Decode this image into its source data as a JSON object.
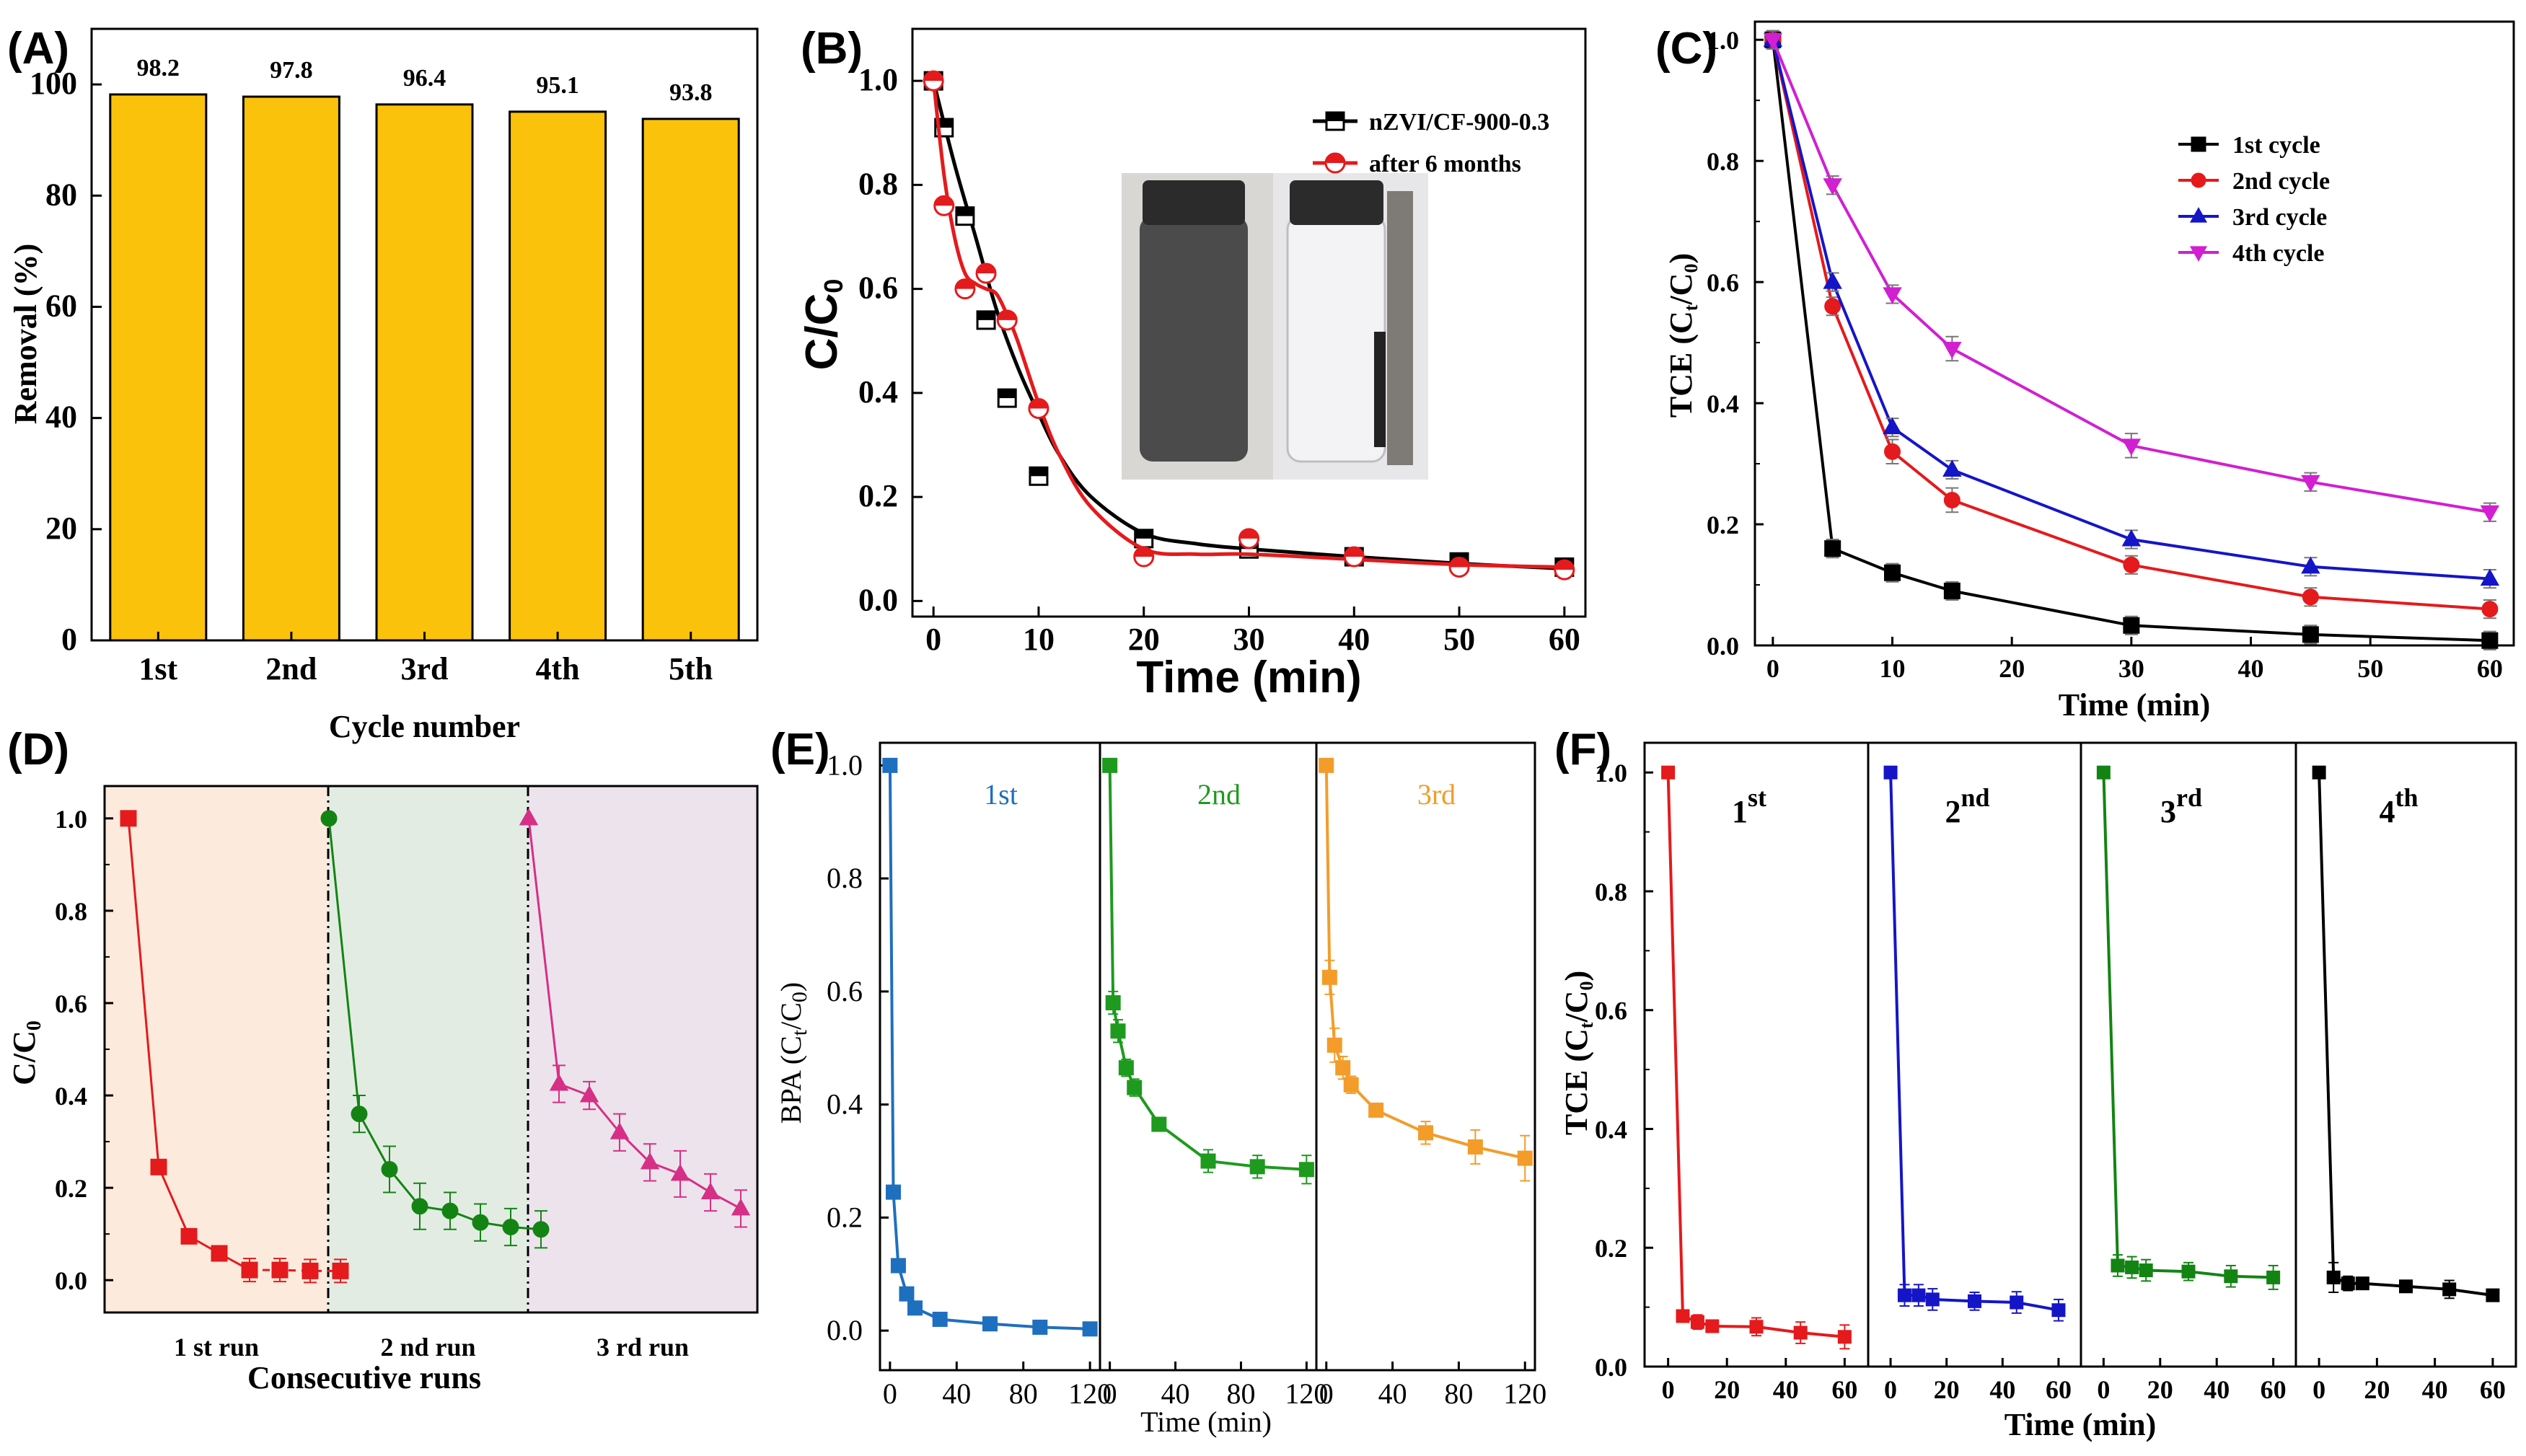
{
  "colors": {
    "bar_fill": "#FBC20B",
    "black": "#000000",
    "red": "#E41A1C",
    "blue": "#1515C8",
    "magenta": "#D11FD1",
    "green": "#138413",
    "pink": "#D62F86",
    "mplblue": "#1F6FBF",
    "mplgreen": "#1E9A1E",
    "mplorange": "#F39C2A",
    "fillD1": "#FCEBDD",
    "fillD2": "#E3ECE3",
    "fillD3": "#EDE3EC"
  },
  "chart_data": [
    {
      "id": "A",
      "panel_label": "(A)",
      "type": "bar",
      "categories": [
        "1st",
        "2nd",
        "3rd",
        "4th",
        "5th"
      ],
      "values": [
        98.2,
        97.8,
        96.4,
        95.1,
        93.8
      ],
      "data_labels": [
        "98.2",
        "97.8",
        "96.4",
        "95.1",
        "93.8"
      ],
      "xlabel": "Cycle number",
      "ylabel": "Removal (%)",
      "ylim": [
        0,
        110
      ],
      "yticks": [
        0,
        20,
        40,
        60,
        80,
        100
      ]
    },
    {
      "id": "B",
      "panel_label": "(B)",
      "type": "line",
      "xlabel": "Time (min)",
      "ylabel": "C/C",
      "ylabel_sub": "0",
      "xlim": [
        -2,
        62
      ],
      "ylim": [
        -0.03,
        1.1
      ],
      "xticks": [
        0,
        10,
        20,
        30,
        40,
        50,
        60
      ],
      "yticks": [
        0.0,
        0.2,
        0.4,
        0.6,
        0.8,
        1.0
      ],
      "inset": "photo of two vials: dark nZVI suspension and clear water with magnet",
      "series": [
        {
          "name": "nZVI/CF-900-0.3",
          "color": "black",
          "marker": "square",
          "x": [
            0,
            1,
            3,
            5,
            7,
            10,
            20,
            30,
            40,
            50,
            60
          ],
          "y": [
            1.0,
            0.91,
            0.74,
            0.54,
            0.39,
            0.24,
            0.12,
            0.1,
            0.085,
            0.075,
            0.065
          ],
          "curve_x": [
            0,
            2,
            4,
            6,
            8,
            10,
            12,
            15,
            20,
            25,
            30,
            40,
            50,
            60
          ],
          "curve_y": [
            1.0,
            0.84,
            0.7,
            0.56,
            0.45,
            0.36,
            0.28,
            0.2,
            0.13,
            0.11,
            0.1,
            0.085,
            0.072,
            0.062
          ]
        },
        {
          "name": "after 6 months",
          "color": "red",
          "marker": "half-circle",
          "x": [
            0,
            1,
            3,
            5,
            7,
            10,
            20,
            30,
            40,
            50,
            60
          ],
          "y": [
            1.0,
            0.76,
            0.6,
            0.63,
            0.54,
            0.37,
            0.085,
            0.12,
            0.085,
            0.065,
            0.06
          ],
          "curve_x": [
            0,
            1,
            2,
            3,
            4,
            5,
            6,
            7,
            8,
            10,
            12,
            15,
            20,
            25,
            30,
            40,
            50,
            60
          ],
          "curve_y": [
            1.0,
            0.82,
            0.7,
            0.63,
            0.61,
            0.6,
            0.59,
            0.55,
            0.5,
            0.38,
            0.28,
            0.18,
            0.1,
            0.09,
            0.09,
            0.08,
            0.07,
            0.065
          ]
        }
      ]
    },
    {
      "id": "C",
      "panel_label": "(C)",
      "type": "line",
      "xlabel": "Time (min)",
      "ylabel": "TCE (C",
      "ylabel_sub": "t",
      "ylabel_mid": "/C",
      "ylabel_sub2": "0",
      "ylabel_end": ")",
      "xlim": [
        -1.5,
        62
      ],
      "ylim": [
        0,
        1.03
      ],
      "xticks": [
        0,
        10,
        20,
        30,
        40,
        50,
        60
      ],
      "yticks": [
        0.0,
        0.2,
        0.4,
        0.6,
        0.8,
        1.0
      ],
      "series": [
        {
          "name": "1st cycle",
          "color": "black",
          "marker": "square",
          "x": [
            0,
            5,
            10,
            15,
            30,
            45,
            60
          ],
          "y": [
            1.0,
            0.16,
            0.12,
            0.09,
            0.033,
            0.018,
            0.008
          ],
          "err": [
            0.015,
            0.015,
            0.015,
            0.015,
            0.015,
            0.015,
            0.015
          ]
        },
        {
          "name": "2nd cycle",
          "color": "red",
          "marker": "circle",
          "x": [
            0,
            5,
            10,
            15,
            30,
            45,
            60
          ],
          "y": [
            1.0,
            0.56,
            0.32,
            0.24,
            0.133,
            0.08,
            0.06
          ],
          "err": [
            0.015,
            0.015,
            0.02,
            0.02,
            0.015,
            0.015,
            0.015
          ]
        },
        {
          "name": "3rd cycle",
          "color": "blue",
          "marker": "triangle-up",
          "x": [
            0,
            5,
            10,
            15,
            30,
            45,
            60
          ],
          "y": [
            1.0,
            0.6,
            0.36,
            0.29,
            0.175,
            0.13,
            0.11
          ],
          "err": [
            0.015,
            0.015,
            0.015,
            0.015,
            0.015,
            0.015,
            0.015
          ]
        },
        {
          "name": "4th cycle",
          "color": "magenta",
          "marker": "triangle-down",
          "x": [
            0,
            5,
            10,
            15,
            30,
            45,
            60
          ],
          "y": [
            1.0,
            0.76,
            0.58,
            0.49,
            0.33,
            0.27,
            0.22
          ],
          "err": [
            0.015,
            0.015,
            0.015,
            0.02,
            0.02,
            0.015,
            0.015
          ]
        }
      ]
    },
    {
      "id": "D",
      "panel_label": "(D)",
      "type": "line",
      "xlabel": "Consecutive runs",
      "ylabel": "C/C",
      "ylabel_sub": "0",
      "ylim": [
        -0.07,
        1.07
      ],
      "yticks": [
        0.0,
        0.2,
        0.4,
        0.6,
        0.8,
        1.0
      ],
      "series": [
        {
          "name": "1 st run",
          "color": "red",
          "marker": "square",
          "y": [
            1.0,
            0.245,
            0.095,
            0.058,
            0.022,
            0.022,
            0.02,
            0.02
          ],
          "err": [
            0,
            0,
            0,
            0,
            0.025,
            0.025,
            0.025,
            0.025
          ]
        },
        {
          "name": "2 nd run",
          "color": "green",
          "marker": "circle",
          "y": [
            1.0,
            0.36,
            0.24,
            0.16,
            0.15,
            0.125,
            0.115,
            0.11
          ],
          "err": [
            0,
            0.04,
            0.05,
            0.05,
            0.04,
            0.04,
            0.04,
            0.04
          ]
        },
        {
          "name": "3 rd run",
          "color": "pink",
          "marker": "triangle-up",
          "y": [
            1.0,
            0.425,
            0.4,
            0.32,
            0.255,
            0.23,
            0.19,
            0.155
          ],
          "err": [
            0,
            0.04,
            0.03,
            0.04,
            0.04,
            0.05,
            0.04,
            0.04
          ]
        }
      ],
      "region_labels": [
        "1 st run",
        "2 nd run",
        "3 rd run"
      ]
    },
    {
      "id": "E",
      "panel_label": "(E)",
      "type": "line",
      "xlabel": "Time (min)",
      "ylabel": "BPA (C",
      "ylabel_sub": "t",
      "ylabel_mid": "/C",
      "ylabel_sub2": "0",
      "ylabel_end": ")",
      "xlim": [
        -6,
        126
      ],
      "ylim": [
        -0.07,
        1.04
      ],
      "xticks": [
        0,
        40,
        80,
        120
      ],
      "xticks_last": [
        0,
        40,
        80,
        120
      ],
      "yticks": [
        0.0,
        0.2,
        0.4,
        0.6,
        0.8,
        1.0
      ],
      "series": [
        {
          "name": "1st",
          "color": "mplblue",
          "x": [
            0,
            2,
            5,
            10,
            15,
            30,
            60,
            90,
            120
          ],
          "y": [
            1.0,
            0.245,
            0.115,
            0.065,
            0.04,
            0.02,
            0.012,
            0.006,
            0.003
          ],
          "err": [
            0,
            0,
            0,
            0,
            0,
            0,
            0,
            0,
            0
          ]
        },
        {
          "name": "2nd",
          "color": "mplgreen",
          "x": [
            0,
            2,
            5,
            10,
            15,
            30,
            60,
            90,
            120
          ],
          "y": [
            1.0,
            0.58,
            0.53,
            0.465,
            0.43,
            0.365,
            0.3,
            0.29,
            0.285
          ],
          "err": [
            0,
            0.02,
            0.02,
            0.015,
            0.015,
            0.01,
            0.02,
            0.02,
            0.025
          ]
        },
        {
          "name": "3rd",
          "color": "mplorange",
          "x": [
            0,
            2,
            5,
            10,
            15,
            30,
            60,
            90,
            120
          ],
          "y": [
            1.0,
            0.625,
            0.505,
            0.465,
            0.435,
            0.39,
            0.35,
            0.325,
            0.305
          ],
          "err": [
            0,
            0.03,
            0.03,
            0.02,
            0.015,
            0.01,
            0.02,
            0.03,
            0.04
          ]
        }
      ]
    },
    {
      "id": "F",
      "panel_label": "(F)",
      "type": "line",
      "xlabel": "Time (min)",
      "ylabel": "TCE (C",
      "ylabel_sub": "t",
      "ylabel_mid": "/C",
      "ylabel_sub2": "0",
      "ylabel_end": ")",
      "xlim": [
        -8,
        68
      ],
      "ylim": [
        0,
        1.05
      ],
      "xticks": [
        0,
        20,
        40,
        60
      ],
      "yticks": [
        0.0,
        0.2,
        0.4,
        0.6,
        0.8,
        1.0
      ],
      "series": [
        {
          "name": "1",
          "sup": "st",
          "color": "red",
          "x": [
            0,
            5,
            10,
            15,
            30,
            45,
            60
          ],
          "y": [
            1.0,
            0.085,
            0.075,
            0.068,
            0.067,
            0.057,
            0.05
          ],
          "err": [
            0.01,
            0.01,
            0.012,
            0.01,
            0.015,
            0.018,
            0.02
          ]
        },
        {
          "name": "2",
          "sup": "nd",
          "color": "blue",
          "x": [
            0,
            5,
            10,
            15,
            30,
            45,
            60
          ],
          "y": [
            1.0,
            0.12,
            0.12,
            0.113,
            0.11,
            0.108,
            0.095
          ],
          "err": [
            0.01,
            0.018,
            0.018,
            0.018,
            0.015,
            0.018,
            0.018
          ]
        },
        {
          "name": "3",
          "sup": "rd",
          "color": "green",
          "x": [
            0,
            5,
            10,
            15,
            30,
            45,
            60
          ],
          "y": [
            1.0,
            0.17,
            0.167,
            0.162,
            0.16,
            0.152,
            0.15
          ],
          "err": [
            0.01,
            0.018,
            0.018,
            0.018,
            0.015,
            0.018,
            0.02
          ]
        },
        {
          "name": "4",
          "sup": "th",
          "color": "black",
          "x": [
            0,
            5,
            10,
            15,
            30,
            45,
            60
          ],
          "y": [
            1.0,
            0.15,
            0.14,
            0.14,
            0.135,
            0.13,
            0.12
          ],
          "err": [
            0.01,
            0.025,
            0.012,
            0.01,
            0.01,
            0.015,
            0.01
          ]
        }
      ]
    }
  ]
}
